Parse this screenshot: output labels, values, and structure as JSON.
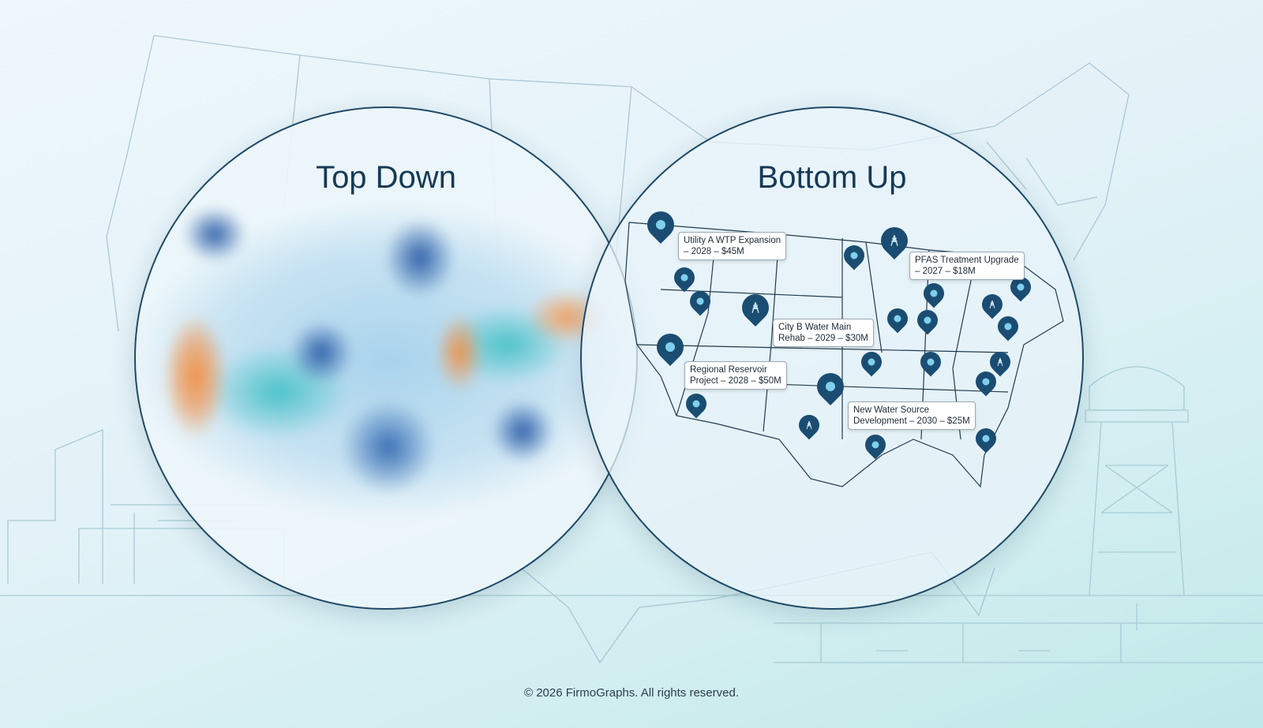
{
  "left_panel": {
    "title": "Top Down"
  },
  "right_panel": {
    "title": "Bottom Up",
    "callouts": [
      {
        "line1": "Utility A WTP Expansion",
        "line2": "– 2028 – $45M"
      },
      {
        "line1": "PFAS Treatment Upgrade",
        "line2": "– 2027 – $18M"
      },
      {
        "line1": "City B Water Main",
        "line2": "Rehab – 2029 – $30M"
      },
      {
        "line1": "Regional Reservoir",
        "line2": "Project – 2028 – $50M"
      },
      {
        "line1": "New Water Source",
        "line2": "Development – 2030 – $25M"
      }
    ],
    "pin_icons": [
      "water-drop-icon",
      "transmission-tower-icon"
    ]
  },
  "colors": {
    "pin": "#1b4d72",
    "border": "#1f4a66",
    "heat_high": "#2e5fa8",
    "heat_mid": "#4cc3c9",
    "heat_hot": "#f0924a"
  },
  "footer": {
    "copyright": "© 2026 FirmoGraphs. All rights reserved."
  }
}
